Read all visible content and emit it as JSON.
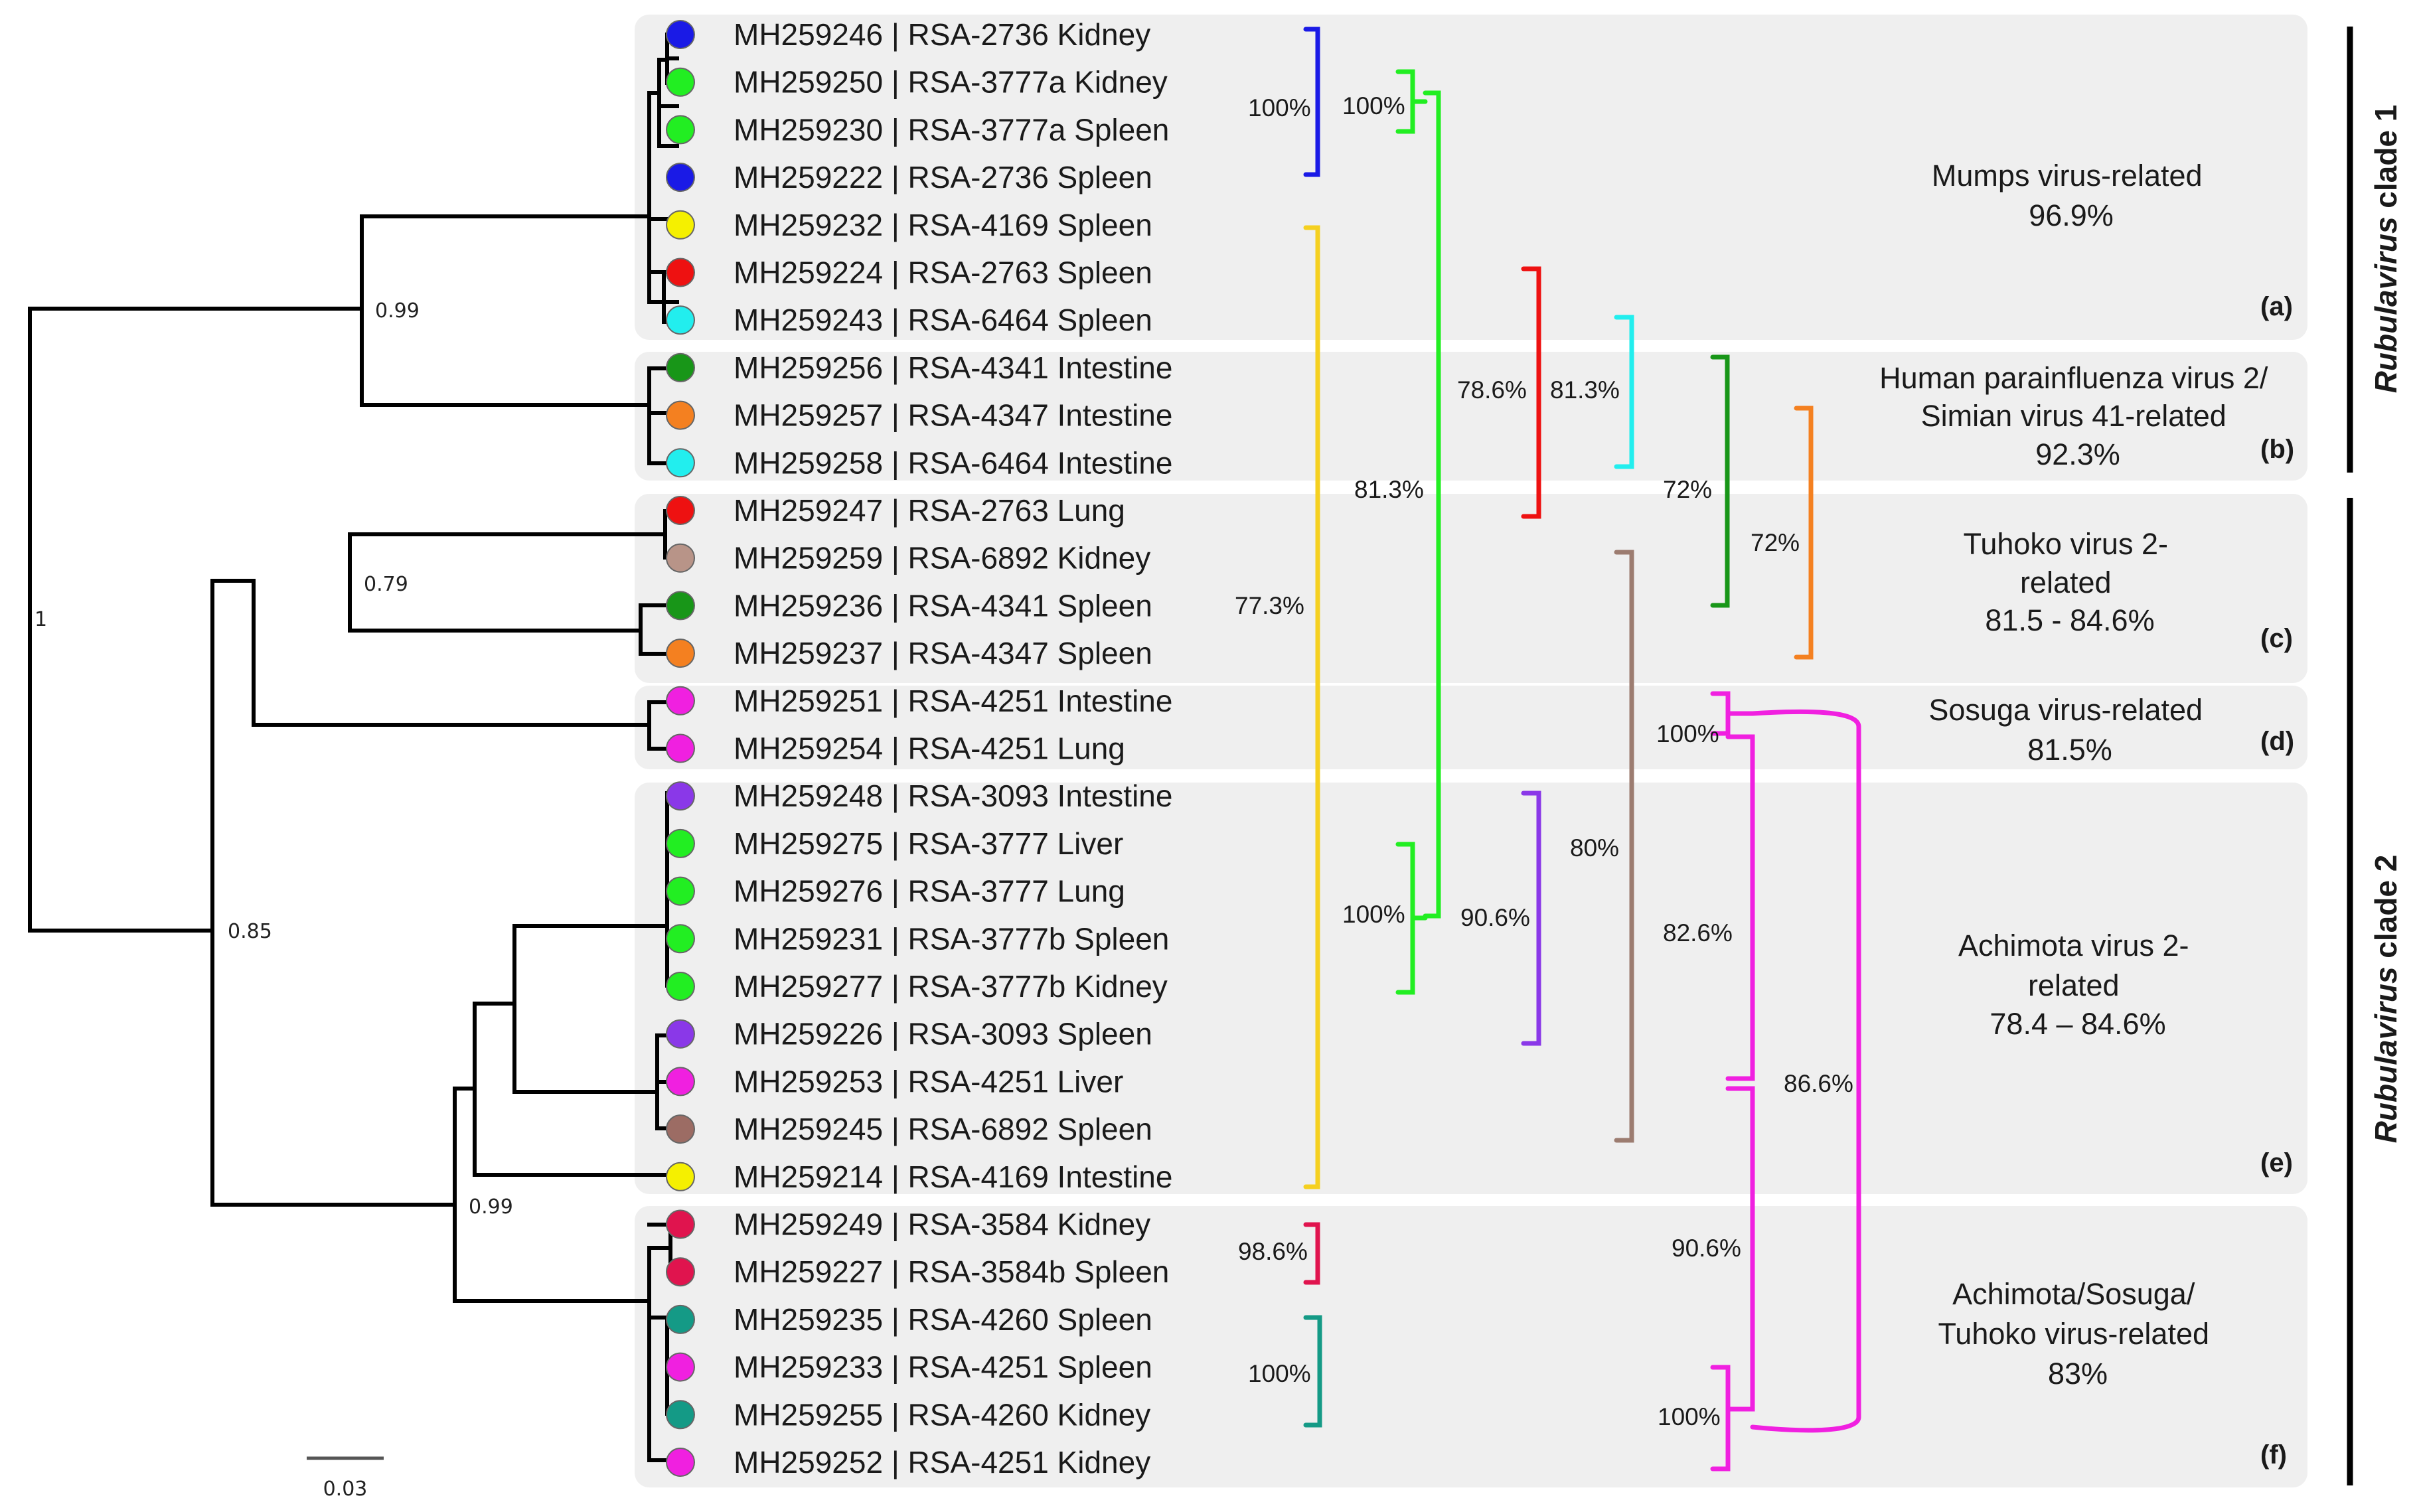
{
  "leaves": [
    {
      "label": "MH259246 | RSA-2736 Kidney",
      "color": "#1a1ae6"
    },
    {
      "label": "MH259250 | RSA-3777a Kidney",
      "color": "#22ee22"
    },
    {
      "label": "MH259230 | RSA-3777a Spleen",
      "color": "#22ee22"
    },
    {
      "label": "MH259222 | RSA-2736 Spleen",
      "color": "#1a1ae6"
    },
    {
      "label": "MH259232 | RSA-4169 Spleen",
      "color": "#f5f000"
    },
    {
      "label": "MH259224 | RSA-2763 Spleen",
      "color": "#ee1111"
    },
    {
      "label": "MH259243 | RSA-6464 Spleen",
      "color": "#22eeee"
    },
    {
      "label": "MH259256 | RSA-4341 Intestine",
      "color": "#189618"
    },
    {
      "label": "MH259257 | RSA-4347 Intestine",
      "color": "#f48020"
    },
    {
      "label": "MH259258 | RSA-6464 Intestine",
      "color": "#22eeee"
    },
    {
      "label": "MH259247 | RSA-2763 Lung",
      "color": "#ee1111"
    },
    {
      "label": "MH259259 | RSA-6892 Kidney",
      "color": "#b89488"
    },
    {
      "label": "MH259236 | RSA-4341 Spleen",
      "color": "#189618"
    },
    {
      "label": "MH259237 | RSA-4347 Spleen",
      "color": "#f48020"
    },
    {
      "label": "MH259251 | RSA-4251 Intestine",
      "color": "#f020e0"
    },
    {
      "label": "MH259254 | RSA-4251 Lung",
      "color": "#f020e0"
    },
    {
      "label": "MH259248 | RSA-3093 Intestine",
      "color": "#8a38e8"
    },
    {
      "label": "MH259275 | RSA-3777 Liver",
      "color": "#22ee22"
    },
    {
      "label": "MH259276 | RSA-3777 Lung",
      "color": "#22ee22"
    },
    {
      "label": "MH259231 | RSA-3777b Spleen",
      "color": "#22ee22"
    },
    {
      "label": "MH259277 | RSA-3777b Kidney",
      "color": "#22ee22"
    },
    {
      "label": "MH259226 | RSA-3093 Spleen",
      "color": "#8a38e8"
    },
    {
      "label": "MH259253 | RSA-4251 Liver",
      "color": "#f020e0"
    },
    {
      "label": "MH259245 | RSA-6892 Spleen",
      "color": "#9c6c64"
    },
    {
      "label": "MH259214 | RSA-4169 Intestine",
      "color": "#f5f000"
    },
    {
      "label": "MH259249 | RSA-3584 Kidney",
      "color": "#e0144e"
    },
    {
      "label": "MH259227 | RSA-3584b Spleen",
      "color": "#e0144e"
    },
    {
      "label": "MH259235 | RSA-4260 Spleen",
      "color": "#149a86"
    },
    {
      "label": "MH259233 | RSA-4251 Spleen",
      "color": "#f020e0"
    },
    {
      "label": "MH259255 | RSA-4260 Kidney",
      "color": "#149a86"
    },
    {
      "label": "MH259252 | RSA-4251 Kidney",
      "color": "#f020e0"
    }
  ],
  "node_supports": [
    {
      "id": "root",
      "value": "1"
    },
    {
      "id": "clade1",
      "value": "0.99"
    },
    {
      "id": "tuhoko",
      "value": "0.79"
    },
    {
      "id": "clade2",
      "value": "0.85"
    },
    {
      "id": "achimota",
      "value": "0.99"
    }
  ],
  "scale_bar": {
    "value": "0.03"
  },
  "groups": [
    {
      "id": "a",
      "lines": [
        "Mumps virus-related",
        "96.9%"
      ],
      "tag": "(a)"
    },
    {
      "id": "b",
      "lines": [
        "Human parainfluenza virus 2/",
        "Simian virus 41-related",
        "92.3%"
      ],
      "tag": "(b)"
    },
    {
      "id": "c",
      "lines": [
        "Tuhoko virus 2-",
        "related",
        "81.5 - 84.6%"
      ],
      "tag": "(c)"
    },
    {
      "id": "d",
      "lines": [
        "Sosuga virus-related",
        "81.5%"
      ],
      "tag": "(d)"
    },
    {
      "id": "e",
      "lines": [
        "Achimota virus 2-",
        "related",
        "78.4 – 84.6%"
      ],
      "tag": "(e)"
    },
    {
      "id": "f",
      "lines": [
        "Achimota/Sosuga/",
        "Tuhoko virus-related",
        "83%"
      ],
      "tag": "(f)"
    }
  ],
  "brackets": [
    {
      "id": "blue-2736",
      "color": "#1a1ae6",
      "label": "100%"
    },
    {
      "id": "green-3777a",
      "color": "#22ee22",
      "label": "100%"
    },
    {
      "id": "green-3777",
      "color": "#22ee22",
      "label": "81.3%"
    },
    {
      "id": "green-3777b",
      "color": "#22ee22",
      "label": "100%"
    },
    {
      "id": "yellow-4169",
      "color": "#f5d020",
      "label": "77.3%"
    },
    {
      "id": "red-2763",
      "color": "#ee1111",
      "label": "78.6%"
    },
    {
      "id": "cyan-6464",
      "color": "#22eeee",
      "label": "81.3%"
    },
    {
      "id": "dkgreen-4341",
      "color": "#189618",
      "label": "72%"
    },
    {
      "id": "orange-4347",
      "color": "#f48020",
      "label": "72%"
    },
    {
      "id": "purple-3093",
      "color": "#8a38e8",
      "label": "90.6%"
    },
    {
      "id": "brown-6892",
      "color": "#9c7c70",
      "label": "80%"
    },
    {
      "id": "crimson-3584",
      "color": "#e0144e",
      "label": "98.6%"
    },
    {
      "id": "teal-4260",
      "color": "#149a86",
      "label": "100%"
    },
    {
      "id": "magenta-d",
      "color": "#f020e0",
      "label": "100%"
    },
    {
      "id": "magenta-e",
      "color": "#f020e0",
      "label": "82.6%"
    },
    {
      "id": "magenta-f",
      "color": "#f020e0",
      "label": "100%"
    },
    {
      "id": "magenta-ef",
      "color": "#f020e0",
      "label": "90.6%"
    },
    {
      "id": "magenta-all",
      "color": "#f020e0",
      "label": "86.6%"
    }
  ],
  "clades": [
    {
      "id": "clade1",
      "prefix": "Rubulavirus",
      "suffix": " clade 1"
    },
    {
      "id": "clade2",
      "prefix": "Rubulavirus",
      "suffix": " clade 2"
    }
  ]
}
